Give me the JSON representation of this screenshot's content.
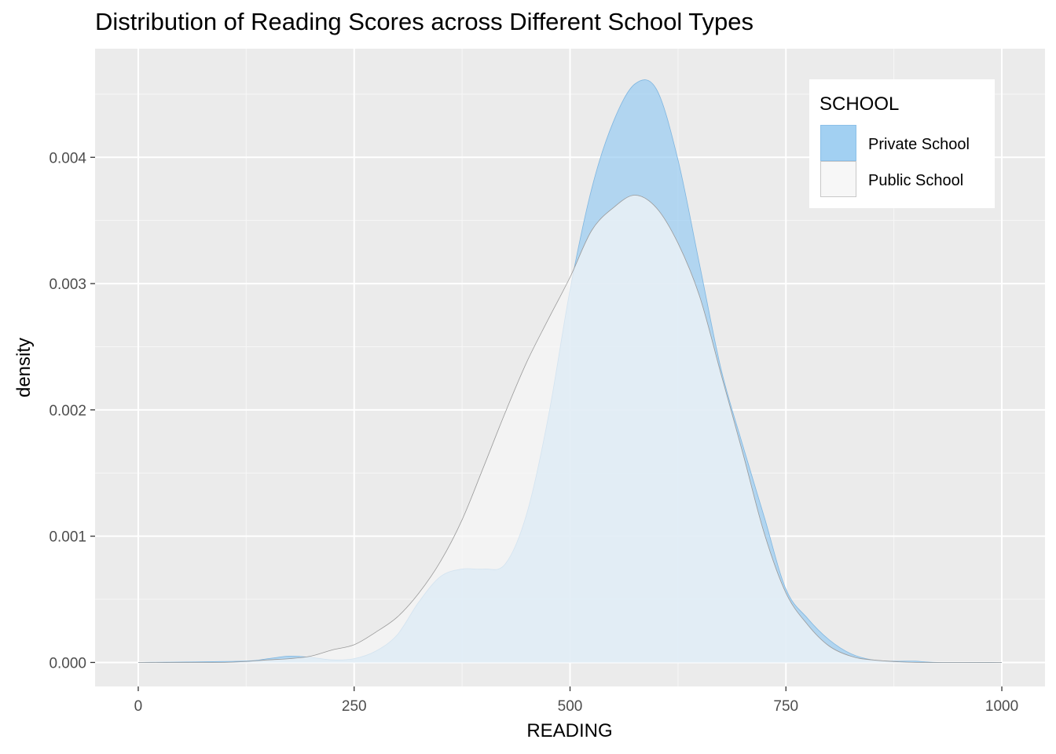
{
  "chart_data": {
    "type": "area",
    "title": "Distribution of Reading Scores across Different School Types",
    "xlabel": "READING",
    "ylabel": "density",
    "xlim": [
      -50,
      1050
    ],
    "ylim": [
      -0.00019,
      0.00486
    ],
    "x_ticks": [
      0,
      250,
      500,
      750,
      1000
    ],
    "x_tick_labels": [
      "0",
      "250",
      "500",
      "750",
      "1000"
    ],
    "y_ticks": [
      0,
      0.001,
      0.002,
      0.003,
      0.004
    ],
    "y_tick_labels": [
      "0.000",
      "0.001",
      "0.002",
      "0.003",
      "0.004"
    ],
    "grid": true,
    "legend": {
      "title": "SCHOOL",
      "position": "top-right"
    },
    "series": [
      {
        "name": "Private School",
        "color": "#99ccf2",
        "x": [
          0,
          120,
          150,
          175,
          200,
          225,
          250,
          275,
          300,
          325,
          350,
          375,
          400,
          425,
          450,
          475,
          500,
          525,
          550,
          575,
          600,
          625,
          650,
          675,
          700,
          725,
          750,
          775,
          800,
          825,
          850,
          875,
          900,
          925,
          1000
        ],
        "y": [
          0,
          1e-05,
          3e-05,
          5e-05,
          4e-05,
          2e-05,
          3e-05,
          9e-05,
          0.00022,
          0.00048,
          0.00068,
          0.00074,
          0.00074,
          0.00078,
          0.00118,
          0.00195,
          0.00295,
          0.00375,
          0.00428,
          0.00458,
          0.00454,
          0.00398,
          0.00315,
          0.00232,
          0.00172,
          0.00115,
          0.00058,
          0.00035,
          0.00018,
          7e-05,
          2e-05,
          1e-05,
          1e-05,
          0,
          0
        ]
      },
      {
        "name": "Public School",
        "color": "#f7f7f7",
        "x": [
          0,
          100,
          150,
          175,
          200,
          225,
          250,
          275,
          300,
          325,
          350,
          375,
          400,
          425,
          450,
          475,
          500,
          525,
          550,
          575,
          600,
          625,
          650,
          675,
          700,
          725,
          750,
          775,
          800,
          825,
          850,
          900,
          1000
        ],
        "y": [
          0,
          0,
          2e-05,
          3e-05,
          5e-05,
          0.0001,
          0.00014,
          0.00024,
          0.00036,
          0.00055,
          0.0008,
          0.00113,
          0.00155,
          0.00198,
          0.00238,
          0.00272,
          0.00305,
          0.00342,
          0.0036,
          0.0037,
          0.0036,
          0.00332,
          0.0029,
          0.00228,
          0.00166,
          0.00102,
          0.00055,
          0.0003,
          0.00013,
          5e-05,
          2e-05,
          0,
          0
        ]
      }
    ]
  }
}
